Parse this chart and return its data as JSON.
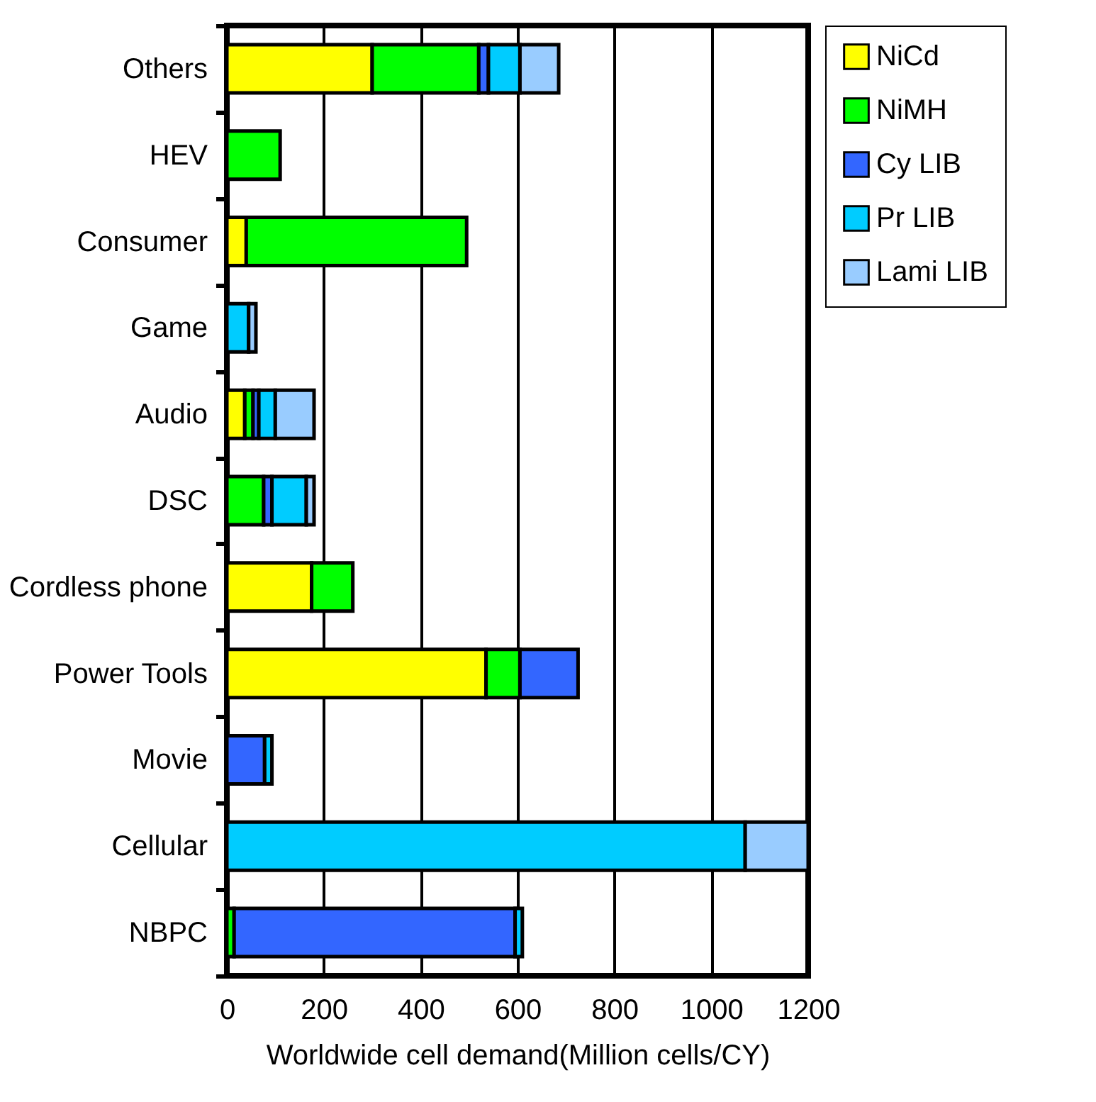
{
  "chart_data": {
    "type": "bar",
    "orientation": "horizontal",
    "stacked": true,
    "xlabel": "Worldwide cell demand(Million cells/CY)",
    "categories": [
      "Others",
      "HEV",
      "Consumer",
      "Game",
      "Audio",
      "DSC",
      "Cordless phone",
      "Power Tools",
      "Movie",
      "Cellular",
      "NBPC"
    ],
    "series": [
      {
        "name": "NiCd",
        "color": "#ffff00",
        "values": [
          300,
          0,
          40,
          0,
          37,
          0,
          175,
          535,
          0,
          0,
          0
        ]
      },
      {
        "name": "NiMH",
        "color": "#00ff00",
        "values": [
          220,
          110,
          455,
          0,
          17,
          76,
          85,
          70,
          0,
          0,
          15
        ]
      },
      {
        "name": "Cy LIB",
        "color": "#3366ff",
        "values": [
          20,
          0,
          0,
          0,
          12,
          17,
          0,
          120,
          78,
          0,
          580
        ]
      },
      {
        "name": "Pr LIB",
        "color": "#00ccff",
        "values": [
          65,
          0,
          0,
          45,
          34,
          71,
          0,
          0,
          15,
          1070,
          15
        ]
      },
      {
        "name": "Lami LIB",
        "color": "#99ccff",
        "values": [
          80,
          0,
          0,
          15,
          80,
          16,
          0,
          0,
          0,
          130,
          0
        ]
      }
    ],
    "xlim": [
      0,
      1200
    ],
    "xticks": [
      0,
      200,
      400,
      600,
      800,
      1000,
      1200
    ],
    "grid": "x",
    "legend": "right"
  }
}
